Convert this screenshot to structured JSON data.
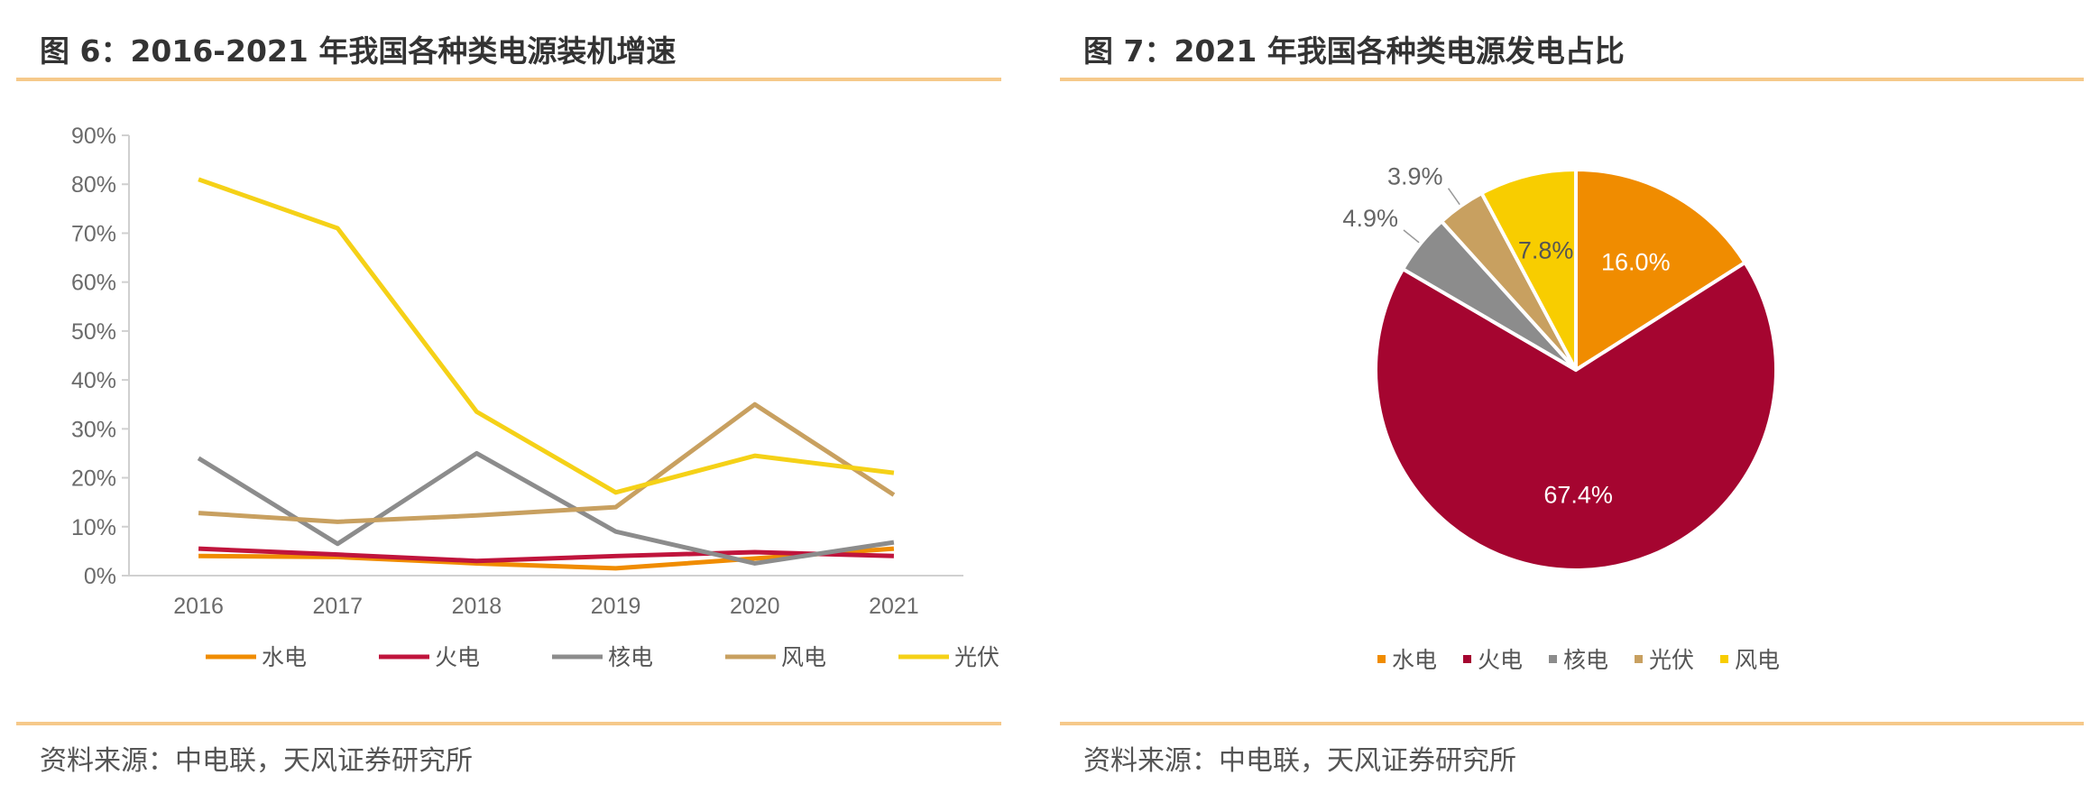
{
  "left_panel": {
    "title": "图 6：2016-2021 年我国各种类电源装机增速",
    "source": "资料来源：中电联，天风证券研究所"
  },
  "right_panel": {
    "title": "图 7：2021 年我国各种类电源发电占比",
    "source": "资料来源：中电联，天风证券研究所"
  },
  "chart_data": [
    {
      "type": "line",
      "title": "",
      "xlabel": "",
      "ylabel": "",
      "categories": [
        "2016",
        "2017",
        "2018",
        "2019",
        "2020",
        "2021"
      ],
      "ylim": [
        0,
        90
      ],
      "yticks": [
        "0%",
        "10%",
        "20%",
        "30%",
        "40%",
        "50%",
        "60%",
        "70%",
        "80%",
        "90%"
      ],
      "grid": false,
      "legend": "bottom",
      "series": [
        {
          "name": "水电",
          "color": "#f08c00",
          "values": [
            4.0,
            3.8,
            2.5,
            1.5,
            3.5,
            5.5
          ]
        },
        {
          "name": "火电",
          "color": "#c0143c",
          "values": [
            5.5,
            4.3,
            3.0,
            4.0,
            4.8,
            4.0
          ]
        },
        {
          "name": "核电",
          "color": "#8c8c8c",
          "values": [
            24.0,
            6.5,
            25.0,
            9.0,
            2.5,
            6.8
          ]
        },
        {
          "name": "风电",
          "color": "#c8a060",
          "values": [
            12.8,
            11.0,
            12.3,
            14.0,
            35.0,
            16.5
          ]
        },
        {
          "name": "光伏",
          "color": "#f5d117",
          "values": [
            81.0,
            71.0,
            33.5,
            17.0,
            24.5,
            21.0
          ]
        }
      ]
    },
    {
      "type": "pie",
      "title": "",
      "legend": "bottom",
      "slices": [
        {
          "name": "水电",
          "value": 16.0,
          "label": "16.0%",
          "color": "#f08c00"
        },
        {
          "name": "火电",
          "value": 67.4,
          "label": "67.4%",
          "color": "#a50530"
        },
        {
          "name": "核电",
          "value": 4.9,
          "label": "4.9%",
          "color": "#8c8c8c"
        },
        {
          "name": "光伏",
          "value": 3.9,
          "label": "3.9%",
          "color": "#c8a060"
        },
        {
          "name": "风电",
          "value": 7.8,
          "label": "7.8%",
          "color": "#f8cd00"
        }
      ]
    }
  ]
}
